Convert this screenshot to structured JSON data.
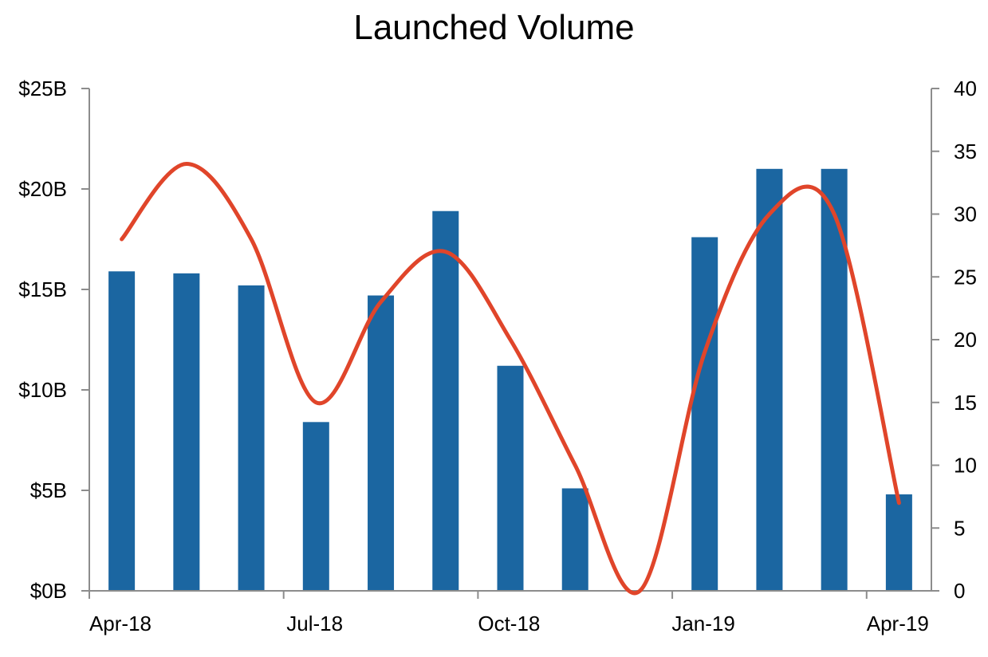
{
  "chart_data": {
    "type": "bar",
    "title": "Launched Volume",
    "xlabel": "",
    "ylabel": "",
    "y2label": "",
    "categories": [
      "Apr-18",
      "May-18",
      "Jun-18",
      "Jul-18",
      "Aug-18",
      "Sep-18",
      "Oct-18",
      "Nov-18",
      "Dec-18",
      "Jan-19",
      "Feb-19",
      "Mar-19",
      "Apr-19"
    ],
    "x_tick_labels": [
      "Apr-18",
      "Jul-18",
      "Oct-18",
      "Jan-19",
      "Apr-19"
    ],
    "y_tick_labels": [
      "$0B",
      "$5B",
      "$10B",
      "$15B",
      "$20B",
      "$25B"
    ],
    "y2_tick_labels": [
      "0",
      "5",
      "10",
      "15",
      "20",
      "25",
      "30",
      "35",
      "40"
    ],
    "ylim": [
      0,
      25
    ],
    "y2lim": [
      0,
      40
    ],
    "series": [
      {
        "type": "bar",
        "axis": "left",
        "unit": "$B",
        "color": "#1b66a1",
        "values": [
          15.9,
          15.8,
          15.2,
          8.4,
          14.7,
          18.9,
          11.2,
          5.1,
          0,
          17.6,
          21.0,
          21.0,
          4.8
        ]
      },
      {
        "type": "line",
        "smooth": true,
        "axis": "right",
        "color": "#e0452a",
        "values": [
          28,
          34,
          28,
          15,
          23,
          27,
          20,
          10,
          0,
          19,
          30,
          30,
          7
        ]
      }
    ],
    "grid": false,
    "legend": "none"
  }
}
